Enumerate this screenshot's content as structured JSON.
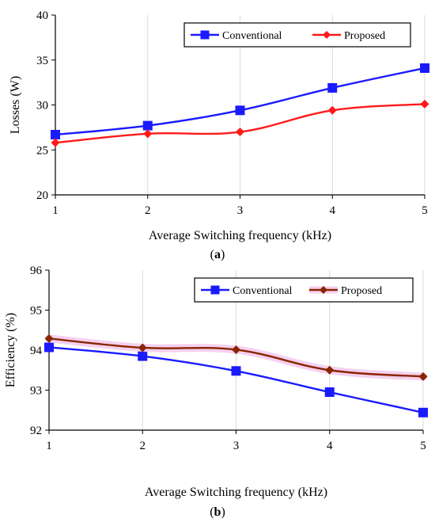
{
  "chart_data": [
    {
      "type": "line",
      "x": [
        1,
        2,
        3,
        4,
        5
      ],
      "xlabel": "Average Switching frequency (kHz)",
      "ylabel": "Losses (W)",
      "ylim": [
        20,
        40
      ],
      "yticks": [
        20,
        25,
        30,
        35,
        40
      ],
      "xticks": [
        1,
        2,
        3,
        4,
        5
      ],
      "grid": "vertical",
      "legend_position": "top-right",
      "caption_prefix": "(",
      "caption_letter": "a",
      "caption_suffix": ")",
      "series": [
        {
          "name": "Conventional",
          "values": [
            26.7,
            27.7,
            29.4,
            31.9,
            34.1
          ],
          "color": "#1a1aff",
          "marker": "square"
        },
        {
          "name": "Proposed",
          "values": [
            25.8,
            26.8,
            27.0,
            29.4,
            30.1
          ],
          "color": "#ff1a1a",
          "marker": "diamond"
        }
      ]
    },
    {
      "type": "line",
      "x": [
        1,
        2,
        3,
        4,
        5
      ],
      "xlabel": "Average Switching frequency (kHz)",
      "ylabel": "Efficiency (%)",
      "ylim": [
        92,
        96
      ],
      "yticks": [
        92,
        93,
        94,
        95,
        96
      ],
      "xticks": [
        1,
        2,
        3,
        4,
        5
      ],
      "grid": "vertical",
      "legend_position": "top-right",
      "caption_prefix": "(",
      "caption_letter": "b",
      "caption_suffix": ")",
      "series": [
        {
          "name": "Conventional",
          "values": [
            94.07,
            93.85,
            93.48,
            92.95,
            92.44
          ],
          "color": "#1a1aff",
          "marker": "square"
        },
        {
          "name": "Proposed",
          "values": [
            94.29,
            94.06,
            94.01,
            93.5,
            93.34
          ],
          "color": "#8b2500",
          "marker": "diamond"
        }
      ]
    }
  ]
}
